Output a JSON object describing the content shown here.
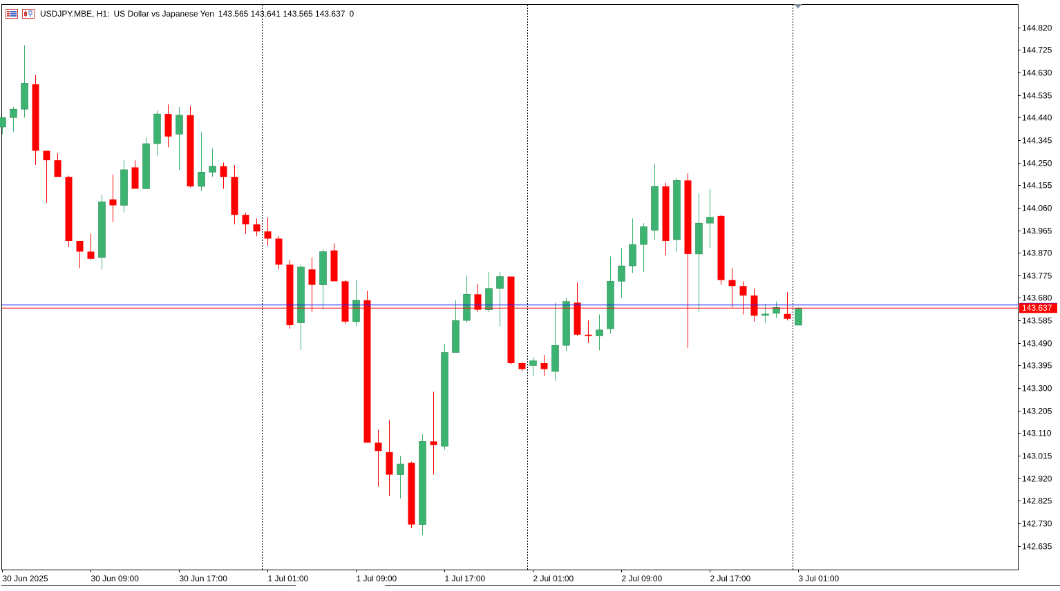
{
  "header": {
    "symbol": "USDJPY.MBE, H1:",
    "description": "US Dollar vs Japanese Yen",
    "ohlc": "143.565 143.641 143.565 143.637",
    "extra": "0"
  },
  "colors": {
    "bull": "#3cb371",
    "bear": "#ff0000",
    "bid_line": "#ff0000",
    "ask_line": "#1a1aff",
    "grid_separator": "#000000"
  },
  "chart_data": {
    "type": "candlestick",
    "symbol": "USDJPY.MBE",
    "timeframe": "H1",
    "ylim": [
      142.535,
      144.915
    ],
    "y_ticks": [
      144.82,
      144.725,
      144.63,
      144.535,
      144.44,
      144.345,
      144.25,
      144.155,
      144.06,
      143.965,
      143.87,
      143.775,
      143.68,
      143.585,
      143.49,
      143.395,
      143.3,
      143.205,
      143.11,
      143.015,
      142.92,
      142.825,
      142.73,
      142.635
    ],
    "x_ticks": [
      {
        "label": "30 Jun 2025",
        "index": 0
      },
      {
        "label": "30 Jun 09:00",
        "index": 8
      },
      {
        "label": "30 Jun 17:00",
        "index": 16
      },
      {
        "label": "1 Jul 01:00",
        "index": 24
      },
      {
        "label": "1 Jul 09:00",
        "index": 32
      },
      {
        "label": "1 Jul 17:00",
        "index": 40
      },
      {
        "label": "2 Jul 01:00",
        "index": 48
      },
      {
        "label": "2 Jul 09:00",
        "index": 56
      },
      {
        "label": "2 Jul 17:00",
        "index": 64
      },
      {
        "label": "3 Jul 01:00",
        "index": 72
      }
    ],
    "day_separators": [
      "1 Jul",
      "2 Jul",
      "3 Jul"
    ],
    "bid_price": "143.637",
    "ask_price": "143.650",
    "candles": [
      {
        "o": 144.4,
        "h": 144.42,
        "l": 144.37,
        "c": 144.44
      },
      {
        "o": 144.44,
        "h": 144.485,
        "l": 144.38,
        "c": 144.475
      },
      {
        "o": 144.475,
        "h": 144.745,
        "l": 144.44,
        "c": 144.585
      },
      {
        "o": 144.58,
        "h": 144.62,
        "l": 144.24,
        "c": 144.3
      },
      {
        "o": 144.3,
        "h": 144.3,
        "l": 144.08,
        "c": 144.26
      },
      {
        "o": 144.26,
        "h": 144.29,
        "l": 144.2,
        "c": 144.19
      },
      {
        "o": 144.19,
        "h": 144.195,
        "l": 143.895,
        "c": 143.92
      },
      {
        "o": 143.92,
        "h": 143.92,
        "l": 143.805,
        "c": 143.875
      },
      {
        "o": 143.875,
        "h": 143.95,
        "l": 143.84,
        "c": 143.845
      },
      {
        "o": 143.85,
        "h": 144.115,
        "l": 143.8,
        "c": 144.085
      },
      {
        "o": 144.095,
        "h": 144.2,
        "l": 144.0,
        "c": 144.07
      },
      {
        "o": 144.07,
        "h": 144.26,
        "l": 144.04,
        "c": 144.22
      },
      {
        "o": 144.23,
        "h": 144.26,
        "l": 144.145,
        "c": 144.14
      },
      {
        "o": 144.14,
        "h": 144.355,
        "l": 144.14,
        "c": 144.33
      },
      {
        "o": 144.33,
        "h": 144.47,
        "l": 144.28,
        "c": 144.455
      },
      {
        "o": 144.455,
        "h": 144.495,
        "l": 144.315,
        "c": 144.36
      },
      {
        "o": 144.37,
        "h": 144.485,
        "l": 144.22,
        "c": 144.45
      },
      {
        "o": 144.45,
        "h": 144.49,
        "l": 144.145,
        "c": 144.15
      },
      {
        "o": 144.15,
        "h": 144.38,
        "l": 144.13,
        "c": 144.21
      },
      {
        "o": 144.21,
        "h": 144.31,
        "l": 144.19,
        "c": 144.235
      },
      {
        "o": 144.235,
        "h": 144.25,
        "l": 144.14,
        "c": 144.19
      },
      {
        "o": 144.19,
        "h": 144.24,
        "l": 143.99,
        "c": 144.03
      },
      {
        "o": 144.03,
        "h": 144.04,
        "l": 143.95,
        "c": 143.99
      },
      {
        "o": 143.99,
        "h": 144.015,
        "l": 143.94,
        "c": 143.96
      },
      {
        "o": 143.96,
        "h": 144.02,
        "l": 143.9,
        "c": 143.93
      },
      {
        "o": 143.93,
        "h": 143.94,
        "l": 143.8,
        "c": 143.82
      },
      {
        "o": 143.82,
        "h": 143.84,
        "l": 143.55,
        "c": 143.565
      },
      {
        "o": 143.575,
        "h": 143.82,
        "l": 143.46,
        "c": 143.81
      },
      {
        "o": 143.8,
        "h": 143.85,
        "l": 143.62,
        "c": 143.735
      },
      {
        "o": 143.735,
        "h": 143.885,
        "l": 143.63,
        "c": 143.875
      },
      {
        "o": 143.88,
        "h": 143.91,
        "l": 143.75,
        "c": 143.75
      },
      {
        "o": 143.75,
        "h": 143.755,
        "l": 143.57,
        "c": 143.58
      },
      {
        "o": 143.58,
        "h": 143.755,
        "l": 143.56,
        "c": 143.67
      },
      {
        "o": 143.67,
        "h": 143.71,
        "l": 143.08,
        "c": 143.07
      },
      {
        "o": 143.07,
        "h": 143.125,
        "l": 142.885,
        "c": 143.035
      },
      {
        "o": 143.03,
        "h": 143.165,
        "l": 142.845,
        "c": 142.935
      },
      {
        "o": 142.935,
        "h": 143.015,
        "l": 142.835,
        "c": 142.98
      },
      {
        "o": 142.985,
        "h": 142.99,
        "l": 142.71,
        "c": 142.725
      },
      {
        "o": 142.725,
        "h": 143.105,
        "l": 142.68,
        "c": 143.075
      },
      {
        "o": 143.075,
        "h": 143.285,
        "l": 142.935,
        "c": 143.06
      },
      {
        "o": 143.055,
        "h": 143.485,
        "l": 143.04,
        "c": 143.45
      },
      {
        "o": 143.45,
        "h": 143.67,
        "l": 143.45,
        "c": 143.585
      },
      {
        "o": 143.585,
        "h": 143.775,
        "l": 143.575,
        "c": 143.695
      },
      {
        "o": 143.695,
        "h": 143.74,
        "l": 143.62,
        "c": 143.63
      },
      {
        "o": 143.63,
        "h": 143.79,
        "l": 143.62,
        "c": 143.72
      },
      {
        "o": 143.72,
        "h": 143.79,
        "l": 143.56,
        "c": 143.77
      },
      {
        "o": 143.77,
        "h": 143.76,
        "l": 143.4,
        "c": 143.405
      },
      {
        "o": 143.405,
        "h": 143.41,
        "l": 143.37,
        "c": 143.38
      },
      {
        "o": 143.395,
        "h": 143.43,
        "l": 143.35,
        "c": 143.415
      },
      {
        "o": 143.405,
        "h": 143.44,
        "l": 143.35,
        "c": 143.38
      },
      {
        "o": 143.37,
        "h": 143.66,
        "l": 143.33,
        "c": 143.48
      },
      {
        "o": 143.48,
        "h": 143.68,
        "l": 143.455,
        "c": 143.665
      },
      {
        "o": 143.66,
        "h": 143.745,
        "l": 143.52,
        "c": 143.525
      },
      {
        "o": 143.525,
        "h": 143.585,
        "l": 143.49,
        "c": 143.52
      },
      {
        "o": 143.52,
        "h": 143.61,
        "l": 143.46,
        "c": 143.545
      },
      {
        "o": 143.55,
        "h": 143.855,
        "l": 143.53,
        "c": 143.75
      },
      {
        "o": 143.75,
        "h": 143.89,
        "l": 143.68,
        "c": 143.815
      },
      {
        "o": 143.815,
        "h": 144.015,
        "l": 143.785,
        "c": 143.905
      },
      {
        "o": 143.905,
        "h": 143.995,
        "l": 143.79,
        "c": 143.98
      },
      {
        "o": 143.965,
        "h": 144.245,
        "l": 143.925,
        "c": 144.15
      },
      {
        "o": 144.15,
        "h": 144.165,
        "l": 143.86,
        "c": 143.92
      },
      {
        "o": 143.925,
        "h": 144.185,
        "l": 143.875,
        "c": 144.175
      },
      {
        "o": 144.175,
        "h": 144.205,
        "l": 143.47,
        "c": 143.865
      },
      {
        "o": 143.865,
        "h": 144.12,
        "l": 143.62,
        "c": 143.995
      },
      {
        "o": 143.995,
        "h": 144.14,
        "l": 143.89,
        "c": 144.02
      },
      {
        "o": 144.025,
        "h": 144.03,
        "l": 143.735,
        "c": 143.755
      },
      {
        "o": 143.755,
        "h": 143.805,
        "l": 143.64,
        "c": 143.73
      },
      {
        "o": 143.73,
        "h": 143.75,
        "l": 143.61,
        "c": 143.69
      },
      {
        "o": 143.69,
        "h": 143.72,
        "l": 143.58,
        "c": 143.605
      },
      {
        "o": 143.61,
        "h": 143.655,
        "l": 143.575,
        "c": 143.612
      },
      {
        "o": 143.615,
        "h": 143.665,
        "l": 143.595,
        "c": 143.64
      },
      {
        "o": 143.612,
        "h": 143.705,
        "l": 143.585,
        "c": 143.592
      },
      {
        "o": 143.565,
        "h": 143.641,
        "l": 143.565,
        "c": 143.637
      }
    ]
  }
}
